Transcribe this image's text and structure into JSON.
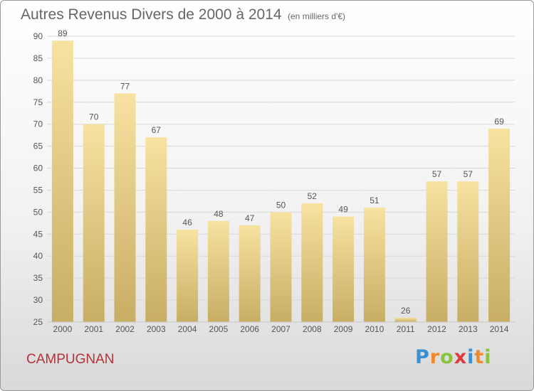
{
  "header": {
    "title": "Autres Revenus Divers de 2000 à 2014",
    "unit": "(en milliers d'€)"
  },
  "footer": {
    "commune": "CAMPUGNAN",
    "brand": "Proxiti",
    "brand_letter_colors": [
      "#3c8fd0",
      "#f08a2b",
      "#8ac43f",
      "#e03a3a",
      "#3c8fd0",
      "#f08a2b",
      "#8ac43f"
    ]
  },
  "colors": {
    "bar_light": "#f7e2a0",
    "bar_dark": "#c8ad64",
    "grid": "#d8d8d8",
    "axis_text": "#555555",
    "commune": "#b5323a"
  },
  "chart_data": {
    "type": "bar",
    "title": "Autres Revenus Divers de 2000 à 2014",
    "subtitle": "(en milliers d'€)",
    "xlabel": "",
    "ylabel": "",
    "categories": [
      "2000",
      "2001",
      "2002",
      "2003",
      "2004",
      "2005",
      "2006",
      "2007",
      "2008",
      "2009",
      "2010",
      "2011",
      "2012",
      "2013",
      "2014"
    ],
    "values": [
      89,
      70,
      77,
      67,
      46,
      48,
      47,
      50,
      52,
      49,
      51,
      26,
      57,
      57,
      69
    ],
    "ylim": [
      25,
      90
    ],
    "yticks": [
      25,
      30,
      35,
      40,
      45,
      50,
      55,
      60,
      65,
      70,
      75,
      80,
      85,
      90
    ],
    "grid": true,
    "legend": "none"
  }
}
